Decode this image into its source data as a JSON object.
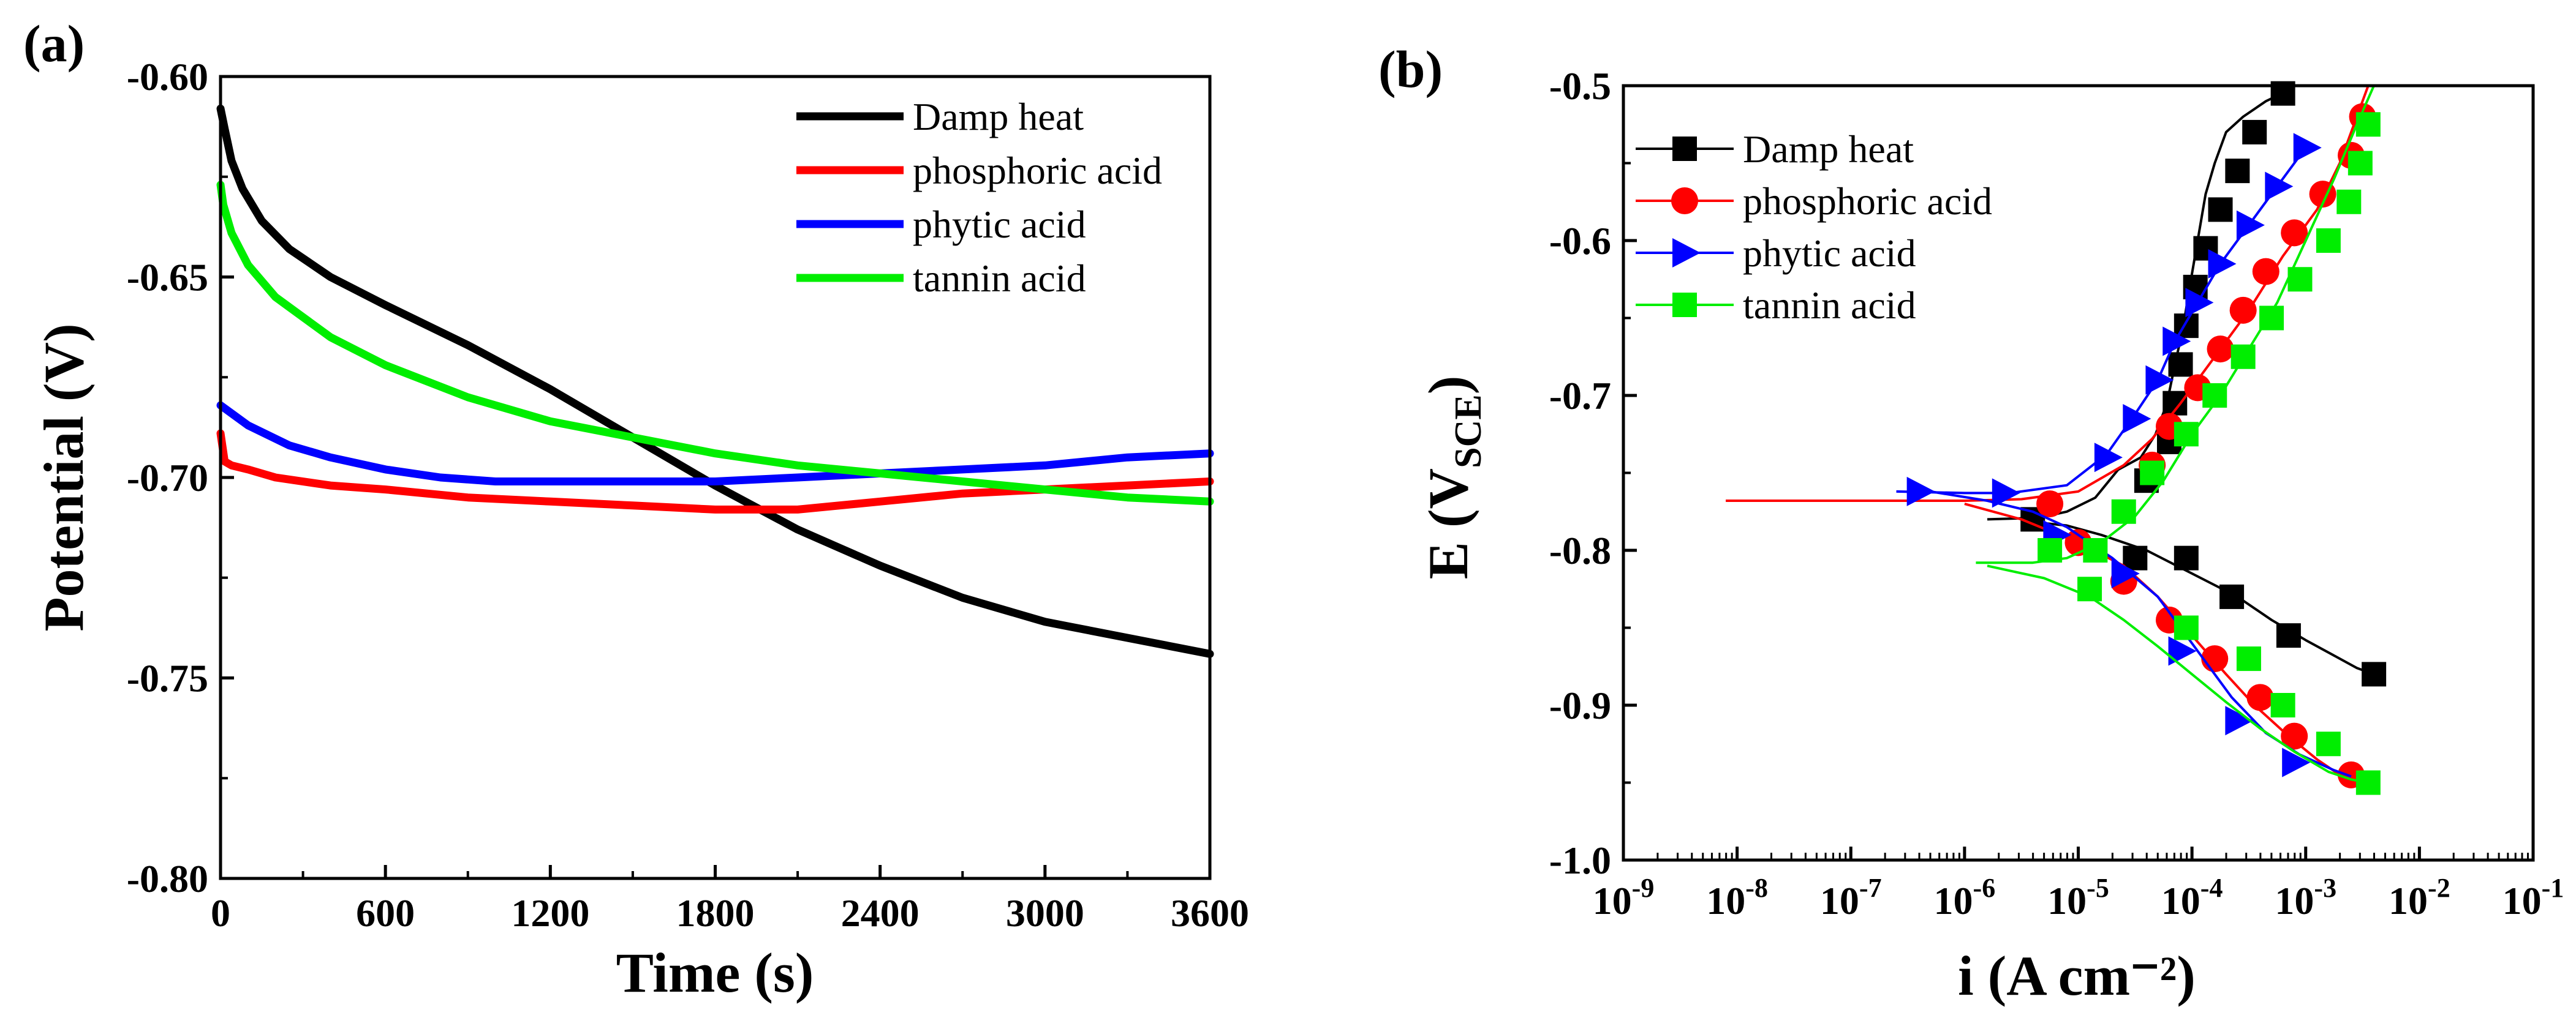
{
  "panels": {
    "a": {
      "label": "(a)"
    },
    "b": {
      "label": "(b)"
    }
  },
  "chart_data": [
    {
      "id": "a",
      "type": "line",
      "title": "",
      "xlabel": "Time (s)",
      "ylabel": "Potential (V)",
      "xlim": [
        0,
        3600
      ],
      "ylim": [
        -0.8,
        -0.6
      ],
      "xticks": [
        0,
        600,
        1200,
        1800,
        2400,
        3000,
        3600
      ],
      "xtick_labels": [
        "0",
        "600",
        "1200",
        "1800",
        "2400",
        "3000",
        "3600"
      ],
      "yticks": [
        -0.8,
        -0.75,
        -0.7,
        -0.65,
        -0.6
      ],
      "ytick_labels": [
        "-0.80",
        "-0.75",
        "-0.70",
        "-0.65",
        "-0.60"
      ],
      "grid": false,
      "legend_position": "top-right",
      "series": [
        {
          "name": "Damp heat",
          "color": "#000000",
          "x": [
            0,
            15,
            40,
            80,
            150,
            250,
            400,
            600,
            900,
            1200,
            1500,
            1800,
            2100,
            2400,
            2700,
            3000,
            3300,
            3600
          ],
          "y": [
            -0.608,
            -0.613,
            -0.621,
            -0.628,
            -0.636,
            -0.643,
            -0.65,
            -0.657,
            -0.667,
            -0.678,
            -0.69,
            -0.702,
            -0.713,
            -0.722,
            -0.73,
            -0.736,
            -0.74,
            -0.744
          ]
        },
        {
          "name": "phosphoric acid",
          "color": "#ff0000",
          "x": [
            0,
            15,
            40,
            100,
            200,
            400,
            600,
            900,
            1200,
            1500,
            1800,
            2100,
            2400,
            2700,
            3000,
            3300,
            3600
          ],
          "y": [
            -0.689,
            -0.696,
            -0.697,
            -0.698,
            -0.7,
            -0.702,
            -0.703,
            -0.705,
            -0.706,
            -0.707,
            -0.708,
            -0.708,
            -0.706,
            -0.704,
            -0.703,
            -0.702,
            -0.701
          ]
        },
        {
          "name": "phytic acid",
          "color": "#0000ff",
          "x": [
            0,
            100,
            250,
            400,
            600,
            800,
            1000,
            1200,
            1500,
            1800,
            2100,
            2400,
            2700,
            3000,
            3300,
            3600
          ],
          "y": [
            -0.682,
            -0.687,
            -0.692,
            -0.695,
            -0.698,
            -0.7,
            -0.701,
            -0.701,
            -0.701,
            -0.701,
            -0.7,
            -0.699,
            -0.698,
            -0.697,
            -0.695,
            -0.694
          ]
        },
        {
          "name": "tannin acid",
          "color": "#00ee00",
          "x": [
            0,
            10,
            40,
            100,
            200,
            400,
            600,
            900,
            1200,
            1500,
            1800,
            2100,
            2400,
            2700,
            3000,
            3300,
            3600
          ],
          "y": [
            -0.627,
            -0.632,
            -0.639,
            -0.647,
            -0.655,
            -0.665,
            -0.672,
            -0.68,
            -0.686,
            -0.69,
            -0.694,
            -0.697,
            -0.699,
            -0.701,
            -0.703,
            -0.705,
            -0.706
          ]
        }
      ]
    },
    {
      "id": "b",
      "type": "line",
      "title": "",
      "xlabel": "i (A cm⁻²)",
      "ylabel": "E (V_SCE)",
      "ylabel_main": "E (V",
      "ylabel_sub": "SCE",
      "ylabel_end": ")",
      "xscale": "log",
      "xlim_log10": [
        -9,
        -1
      ],
      "ylim": [
        -1.0,
        -0.5
      ],
      "xticks_log10": [
        -9,
        -8,
        -7,
        -6,
        -5,
        -4,
        -3,
        -2,
        -1
      ],
      "xtick_base": "10",
      "xtick_exponents": [
        "-9",
        "-8",
        "-7",
        "-6",
        "-5",
        "-4",
        "-3",
        "-2",
        "-1"
      ],
      "yticks": [
        -1.0,
        -0.9,
        -0.8,
        -0.7,
        -0.6,
        -0.5
      ],
      "ytick_labels": [
        "-1.0",
        "-0.9",
        "-0.8",
        "-0.7",
        "-0.6",
        "-0.5"
      ],
      "grid": false,
      "legend_position": "top-left",
      "series": [
        {
          "name": "Damp heat",
          "color": "#000000",
          "marker": "square",
          "anodic": {
            "x_log10": [
              -5.8,
              -5.35,
              -5.1,
              -4.85,
              -4.65,
              -4.45,
              -4.32,
              -4.22,
              -4.15,
              -4.08,
              -4.02,
              -3.95,
              -3.88,
              -3.8,
              -3.7,
              -3.55,
              -3.35,
              -3.15
            ],
            "y": [
              -0.78,
              -0.779,
              -0.775,
              -0.766,
              -0.748,
              -0.74,
              -0.725,
              -0.705,
              -0.68,
              -0.657,
              -0.63,
              -0.6,
              -0.57,
              -0.55,
              -0.53,
              -0.52,
              -0.51,
              -0.503
            ]
          },
          "cathodic": {
            "x_log10": [
              -5.5,
              -5.1,
              -4.8,
              -4.4,
              -4.0,
              -3.6,
              -3.3,
              -3.0,
              -2.75,
              -2.55,
              -2.4
            ],
            "y": [
              -0.781,
              -0.784,
              -0.79,
              -0.8,
              -0.815,
              -0.83,
              -0.845,
              -0.858,
              -0.868,
              -0.876,
              -0.88
            ]
          },
          "markers": {
            "x_log10": [
              -5.4,
              -4.4,
              -4.2,
              -4.15,
              -4.1,
              -4.05,
              -3.97,
              -3.88,
              -3.75,
              -3.6,
              -3.45,
              -3.2,
              -4.5,
              -4.05,
              -3.65,
              -3.15,
              -2.4
            ],
            "y": [
              -0.78,
              -0.755,
              -0.73,
              -0.705,
              -0.68,
              -0.655,
              -0.63,
              -0.605,
              -0.58,
              -0.555,
              -0.53,
              -0.505,
              -0.805,
              -0.805,
              -0.83,
              -0.855,
              -0.88
            ]
          }
        },
        {
          "name": "phosphoric acid",
          "color": "#ff0000",
          "marker": "circle",
          "anodic": {
            "x_log10": [
              -8.1,
              -6.5,
              -6.0,
              -5.5,
              -5.0,
              -4.6,
              -4.35,
              -4.1,
              -3.8,
              -3.5,
              -3.2,
              -2.9,
              -2.7,
              -2.55,
              -2.45
            ],
            "y": [
              -0.768,
              -0.768,
              -0.768,
              -0.767,
              -0.762,
              -0.745,
              -0.728,
              -0.705,
              -0.675,
              -0.645,
              -0.61,
              -0.58,
              -0.55,
              -0.52,
              -0.5
            ]
          },
          "cathodic": {
            "x_log10": [
              -6.0,
              -5.5,
              -5.0,
              -4.6,
              -4.3,
              -4.0,
              -3.7,
              -3.45,
              -3.15,
              -2.9,
              -2.7,
              -2.55
            ],
            "y": [
              -0.77,
              -0.78,
              -0.795,
              -0.81,
              -0.83,
              -0.855,
              -0.88,
              -0.9,
              -0.92,
              -0.935,
              -0.945,
              -0.948
            ]
          },
          "markers": {
            "x_log10": [
              -5.25,
              -4.35,
              -4.2,
              -3.95,
              -3.75,
              -3.55,
              -3.35,
              -3.1,
              -2.85,
              -2.6,
              -2.5,
              -5.0,
              -4.6,
              -4.2,
              -3.8,
              -3.4,
              -3.1,
              -2.6
            ],
            "y": [
              -0.77,
              -0.745,
              -0.72,
              -0.695,
              -0.67,
              -0.645,
              -0.62,
              -0.595,
              -0.57,
              -0.545,
              -0.52,
              -0.795,
              -0.82,
              -0.845,
              -0.87,
              -0.895,
              -0.92,
              -0.945
            ]
          }
        },
        {
          "name": "phytic acid",
          "color": "#0000ff",
          "marker": "triangle-right",
          "anodic": {
            "x_log10": [
              -6.6,
              -6.0,
              -5.6,
              -5.1,
              -4.75,
              -4.5,
              -4.3,
              -4.15,
              -3.95,
              -3.75,
              -3.5,
              -3.25,
              -3.0
            ],
            "y": [
              -0.762,
              -0.763,
              -0.763,
              -0.758,
              -0.738,
              -0.712,
              -0.69,
              -0.665,
              -0.64,
              -0.615,
              -0.59,
              -0.565,
              -0.54
            ]
          },
          "cathodic": {
            "x_log10": [
              -6.3,
              -5.8,
              -5.4,
              -5.1,
              -4.7,
              -4.3,
              -3.95,
              -3.65,
              -3.35,
              -3.05,
              -2.75,
              -2.6
            ],
            "y": [
              -0.762,
              -0.768,
              -0.775,
              -0.785,
              -0.805,
              -0.83,
              -0.865,
              -0.895,
              -0.918,
              -0.932,
              -0.942,
              -0.946
            ]
          },
          "markers": {
            "x_log10": [
              -6.4,
              -5.65,
              -4.75,
              -4.5,
              -4.3,
              -4.15,
              -3.95,
              -3.75,
              -3.5,
              -3.25,
              -3.0,
              -5.2,
              -4.6,
              -4.1,
              -3.6,
              -3.1
            ],
            "y": [
              -0.762,
              -0.763,
              -0.74,
              -0.715,
              -0.69,
              -0.665,
              -0.64,
              -0.615,
              -0.59,
              -0.565,
              -0.54,
              -0.79,
              -0.815,
              -0.865,
              -0.91,
              -0.937
            ]
          }
        },
        {
          "name": "tannin acid",
          "color": "#00ee00",
          "marker": "square",
          "anodic": {
            "x_log10": [
              -5.9,
              -5.4,
              -5.1,
              -4.8,
              -4.5,
              -4.25,
              -4.0,
              -3.75,
              -3.5,
              -3.25,
              -3.0,
              -2.75,
              -2.55,
              -2.4
            ],
            "y": [
              -0.808,
              -0.808,
              -0.805,
              -0.795,
              -0.778,
              -0.755,
              -0.725,
              -0.7,
              -0.67,
              -0.64,
              -0.6,
              -0.56,
              -0.525,
              -0.5
            ]
          },
          "cathodic": {
            "x_log10": [
              -5.8,
              -5.3,
              -4.9,
              -4.6,
              -4.3,
              -4.0,
              -3.7,
              -3.4,
              -3.1,
              -2.8,
              -2.6,
              -2.45
            ],
            "y": [
              -0.81,
              -0.818,
              -0.83,
              -0.845,
              -0.862,
              -0.88,
              -0.898,
              -0.915,
              -0.93,
              -0.943,
              -0.948,
              -0.95
            ]
          },
          "markers": {
            "x_log10": [
              -5.25,
              -4.85,
              -4.6,
              -4.35,
              -4.05,
              -3.8,
              -3.55,
              -3.3,
              -3.05,
              -2.8,
              -2.62,
              -2.52,
              -2.45,
              -4.9,
              -4.05,
              -3.5,
              -3.2,
              -2.8,
              -2.45
            ],
            "y": [
              -0.8,
              -0.8,
              -0.775,
              -0.75,
              -0.725,
              -0.7,
              -0.675,
              -0.65,
              -0.625,
              -0.6,
              -0.575,
              -0.55,
              -0.525,
              -0.825,
              -0.85,
              -0.87,
              -0.9,
              -0.925,
              -0.95
            ]
          }
        }
      ]
    }
  ]
}
